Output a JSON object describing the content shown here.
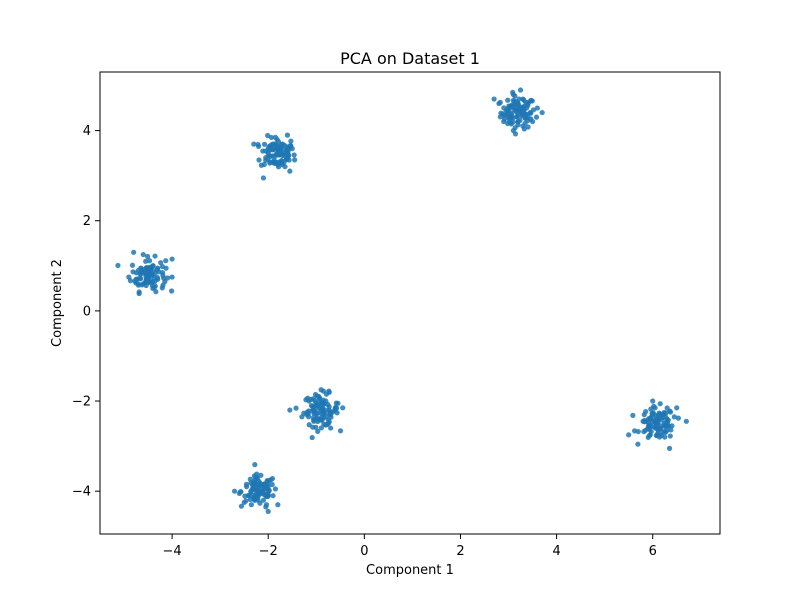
{
  "chart_data": {
    "type": "scatter",
    "title": "PCA on Dataset 1",
    "xlabel": "Component 1",
    "ylabel": "Component 2",
    "xlim": [
      -5.5,
      7.4
    ],
    "ylim": [
      -4.95,
      5.3
    ],
    "xticks": [
      -4,
      -2,
      0,
      2,
      4,
      6
    ],
    "yticks": [
      -4,
      -2,
      0,
      2,
      4
    ],
    "grid": false,
    "legend": "none",
    "marker_color": "#1f77b4",
    "series": [
      {
        "clusters": [
          {
            "center": [
              3.2,
              4.4
            ],
            "points": [
              [
                3.2,
                4.4
              ],
              [
                3.0,
                4.5
              ],
              [
                3.4,
                4.3
              ],
              [
                2.8,
                4.6
              ],
              [
                3.6,
                4.5
              ],
              [
                3.1,
                4.8
              ],
              [
                3.3,
                4.1
              ],
              [
                2.9,
                4.2
              ],
              [
                3.5,
                4.2
              ],
              [
                3.2,
                4.6
              ],
              [
                3.0,
                4.3
              ],
              [
                3.4,
                4.6
              ],
              [
                2.7,
                4.7
              ],
              [
                3.7,
                4.4
              ],
              [
                3.1,
                4.0
              ],
              [
                3.3,
                4.7
              ],
              [
                2.95,
                4.45
              ],
              [
                3.45,
                4.4
              ],
              [
                3.2,
                4.2
              ],
              [
                3.25,
                4.9
              ]
            ]
          },
          {
            "center": [
              -1.8,
              3.5
            ],
            "points": [
              [
                -1.8,
                3.5
              ],
              [
                -2.0,
                3.6
              ],
              [
                -1.6,
                3.4
              ],
              [
                -1.9,
                3.3
              ],
              [
                -1.7,
                3.7
              ],
              [
                -2.2,
                3.65
              ],
              [
                -1.5,
                3.6
              ],
              [
                -1.85,
                3.85
              ],
              [
                -1.65,
                3.2
              ],
              [
                -2.05,
                3.4
              ],
              [
                -1.75,
                3.55
              ],
              [
                -1.45,
                3.35
              ],
              [
                -2.3,
                3.7
              ],
              [
                -1.9,
                3.7
              ],
              [
                -1.6,
                3.9
              ],
              [
                -2.1,
                2.95
              ],
              [
                -1.55,
                3.1
              ],
              [
                -1.8,
                3.25
              ],
              [
                -2.0,
                3.5
              ],
              [
                -1.7,
                3.45
              ]
            ]
          },
          {
            "center": [
              -4.5,
              0.8
            ],
            "points": [
              [
                -4.5,
                0.8
              ],
              [
                -4.7,
                0.9
              ],
              [
                -4.3,
                0.7
              ],
              [
                -4.6,
                0.6
              ],
              [
                -4.4,
                1.0
              ],
              [
                -4.9,
                0.75
              ],
              [
                -4.2,
                0.85
              ],
              [
                -4.55,
                1.1
              ],
              [
                -4.35,
                0.55
              ],
              [
                -4.75,
                0.7
              ],
              [
                -4.45,
                0.9
              ],
              [
                -4.15,
                0.65
              ],
              [
                -4.8,
                1.3
              ],
              [
                -4.6,
                1.25
              ],
              [
                -4.0,
                1.15
              ],
              [
                -4.4,
                0.5
              ],
              [
                -4.65,
                0.95
              ],
              [
                -4.5,
                0.65
              ],
              [
                -4.3,
                0.95
              ],
              [
                -4.7,
                0.6
              ]
            ]
          },
          {
            "center": [
              -0.9,
              -2.2
            ],
            "points": [
              [
                -0.9,
                -2.2
              ],
              [
                -1.1,
                -2.1
              ],
              [
                -0.7,
                -2.3
              ],
              [
                -1.0,
                -2.4
              ],
              [
                -0.8,
                -2.0
              ],
              [
                -1.2,
                -2.3
              ],
              [
                -0.6,
                -2.15
              ],
              [
                -0.95,
                -1.9
              ],
              [
                -0.75,
                -2.5
              ],
              [
                -1.15,
                -2.0
              ],
              [
                -0.85,
                -2.25
              ],
              [
                -0.55,
                -2.05
              ],
              [
                -1.55,
                -2.2
              ],
              [
                -0.9,
                -1.75
              ],
              [
                -0.7,
                -2.6
              ],
              [
                -1.05,
                -2.45
              ],
              [
                -0.45,
                -2.15
              ],
              [
                -1.3,
                -2.35
              ],
              [
                -0.8,
                -2.35
              ],
              [
                -1.0,
                -2.05
              ]
            ]
          },
          {
            "center": [
              -2.2,
              -4.0
            ],
            "points": [
              [
                -2.2,
                -4.0
              ],
              [
                -2.4,
                -4.1
              ],
              [
                -2.0,
                -3.9
              ],
              [
                -2.3,
                -3.8
              ],
              [
                -2.1,
                -4.2
              ],
              [
                -2.6,
                -4.05
              ],
              [
                -1.9,
                -4.1
              ],
              [
                -2.25,
                -3.7
              ],
              [
                -2.05,
                -4.35
              ],
              [
                -2.45,
                -3.9
              ],
              [
                -2.15,
                -4.05
              ],
              [
                -1.85,
                -3.95
              ],
              [
                -2.7,
                -4.0
              ],
              [
                -2.35,
                -4.3
              ],
              [
                -2.0,
                -4.45
              ],
              [
                -2.5,
                -4.25
              ],
              [
                -1.95,
                -3.75
              ],
              [
                -2.3,
                -4.15
              ],
              [
                -2.1,
                -3.85
              ],
              [
                -1.8,
                -4.3
              ]
            ]
          },
          {
            "center": [
              6.1,
              -2.5
            ],
            "points": [
              [
                6.1,
                -2.5
              ],
              [
                5.9,
                -2.6
              ],
              [
                6.3,
                -2.4
              ],
              [
                6.0,
                -2.3
              ],
              [
                6.2,
                -2.7
              ],
              [
                5.8,
                -2.45
              ],
              [
                6.4,
                -2.55
              ],
              [
                6.05,
                -2.15
              ],
              [
                6.25,
                -2.8
              ],
              [
                5.95,
                -2.4
              ],
              [
                6.15,
                -2.55
              ],
              [
                6.45,
                -2.35
              ],
              [
                5.5,
                -2.75
              ],
              [
                6.7,
                -2.45
              ],
              [
                6.0,
                -2.0
              ],
              [
                6.35,
                -3.05
              ],
              [
                6.5,
                -2.15
              ],
              [
                5.85,
                -2.65
              ],
              [
                6.2,
                -2.3
              ],
              [
                6.3,
                -2.65
              ]
            ]
          }
        ]
      }
    ]
  }
}
